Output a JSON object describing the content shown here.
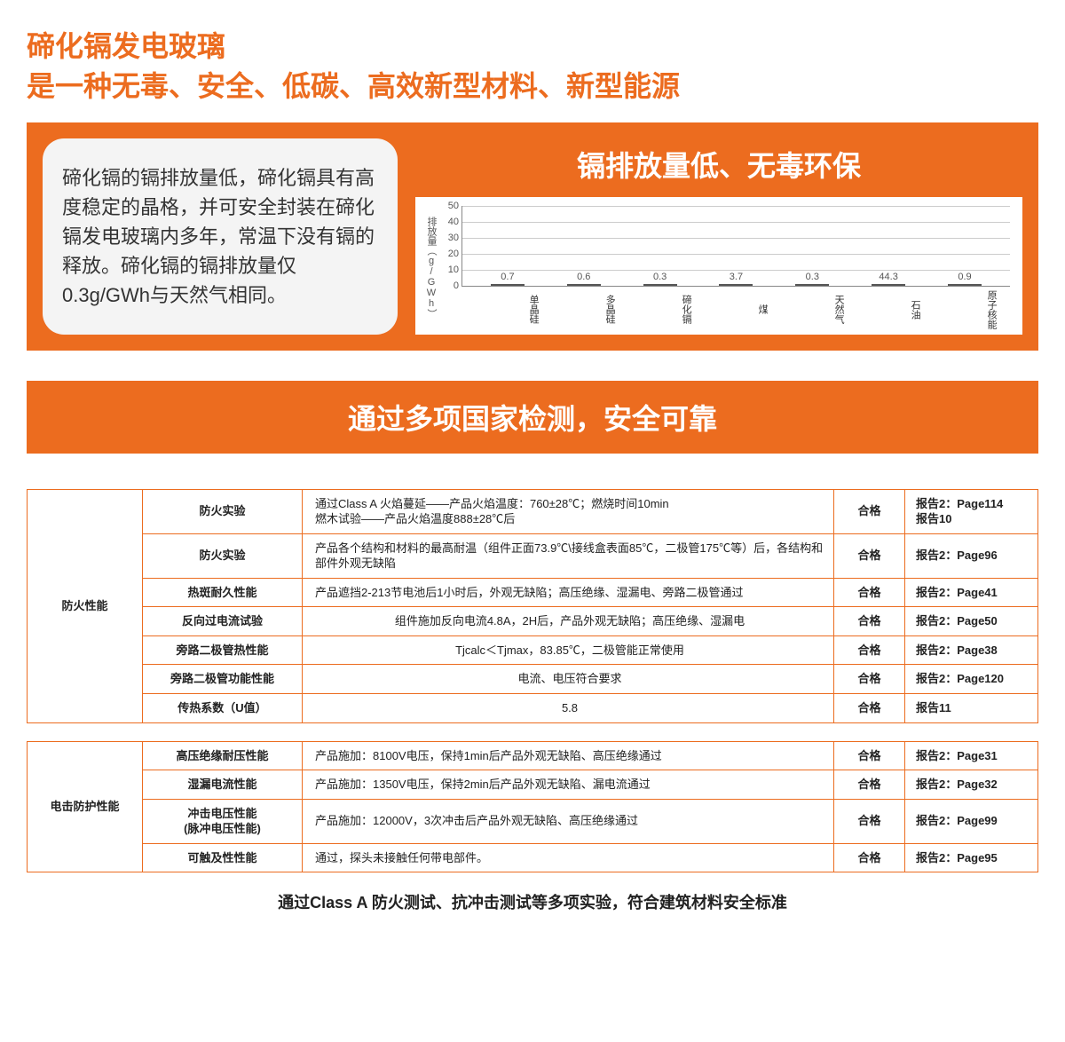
{
  "title_line1": "碲化镉发电玻璃",
  "title_line2": "是一种无毒、安全、低碳、高效新型材料、新型能源",
  "panel1": {
    "left_text": "碲化镉的镉排放量低，碲化镉具有高度稳定的晶格，并可安全封装在碲化镉发电玻璃内多年，常温下没有镉的释放。碲化镉的镉排放量仅0.3g/GWh与天然气相同。",
    "right_title": "镉排放量低、无毒环保",
    "chart": {
      "type": "bar",
      "ylabel": "排放量（g/GWh）",
      "ylim": [
        0,
        50
      ],
      "ytick_step": 10,
      "bar_color": "#8b7bbf",
      "bar_border": "#555555",
      "grid_color": "#cccccc",
      "axis_color": "#888888",
      "background": "#ffffff",
      "categories": [
        "单晶硅",
        "多晶硅",
        "碲化镉",
        "煤",
        "天然气",
        "石油",
        "原子核能"
      ],
      "values": [
        0.7,
        0.6,
        0.3,
        3.7,
        0.3,
        44.3,
        0.9
      ]
    }
  },
  "section2_title": "通过多项国家检测，安全可靠",
  "table1": {
    "category": "防火性能",
    "rows": [
      {
        "name": "防火实验",
        "desc": "通过Class A 火焰蔓延——产品火焰温度：760±28℃；燃烧时间10min\n燃木试验——产品火焰温度888±28℃后",
        "result": "合格",
        "ref": "报告2：Page114\n报告10"
      },
      {
        "name": "防火实验",
        "desc": "产品各个结构和材料的最高耐温（组件正面73.9℃\\接线盒表面85℃，二极管175℃等）后，各结构和部件外观无缺陷",
        "result": "合格",
        "ref": "报告2：Page96"
      },
      {
        "name": "热斑耐久性能",
        "desc": "产品遮挡2-213节电池后1小时后，外观无缺陷；高压绝缘、湿漏电、旁路二极管通过",
        "result": "合格",
        "ref": "报告2：Page41"
      },
      {
        "name": "反向过电流试验",
        "desc": "组件施加反向电流4.8A，2H后，产品外观无缺陷；高压绝缘、湿漏电",
        "result": "合格",
        "ref": "报告2：Page50"
      },
      {
        "name": "旁路二极管热性能",
        "desc": "Tjcalc＜Tjmax，83.85℃，二极管能正常使用",
        "result": "合格",
        "ref": "报告2：Page38"
      },
      {
        "name": "旁路二极管功能性能",
        "desc": "电流、电压符合要求",
        "result": "合格",
        "ref": "报告2：Page120"
      },
      {
        "name": "传热系数（U值）",
        "desc": "5.8",
        "result": "合格",
        "ref": "报告11"
      }
    ]
  },
  "table2": {
    "category": "电击防护性能",
    "rows": [
      {
        "name": "高压绝缘耐压性能",
        "desc": "产品施加：8100V电压，保持1min后产品外观无缺陷、高压绝缘通过",
        "result": "合格",
        "ref": "报告2：Page31"
      },
      {
        "name": "湿漏电流性能",
        "desc": "产品施加：1350V电压，保持2min后产品外观无缺陷、漏电流通过",
        "result": "合格",
        "ref": "报告2：Page32"
      },
      {
        "name": "冲击电压性能\n(脉冲电压性能)",
        "desc": "产品施加：12000V，3次冲击后产品外观无缺陷、高压绝缘通过",
        "result": "合格",
        "ref": "报告2：Page99"
      },
      {
        "name": "可触及性性能",
        "desc": "通过，探头未接触任何带电部件。",
        "result": "合格",
        "ref": "报告2：Page95"
      }
    ]
  },
  "footer": "通过Class A 防火测试、抗冲击测试等多项实验，符合建筑材料安全标准"
}
